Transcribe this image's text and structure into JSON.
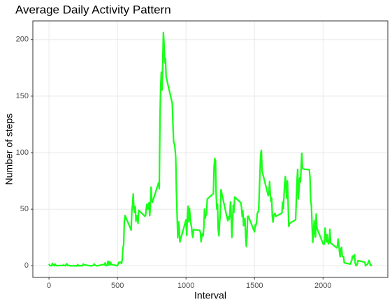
{
  "chart_data": {
    "type": "line",
    "title": "Average Daily Activity Pattern",
    "x_label": "Interval",
    "y_label": "Number of steps",
    "color": "#1aff1a",
    "x": [
      0,
      5,
      10,
      15,
      20,
      25,
      30,
      35,
      40,
      45,
      50,
      55,
      100,
      105,
      110,
      115,
      120,
      125,
      130,
      135,
      140,
      145,
      150,
      155,
      200,
      205,
      210,
      215,
      220,
      225,
      230,
      235,
      240,
      245,
      250,
      255,
      300,
      305,
      310,
      315,
      320,
      325,
      330,
      335,
      340,
      345,
      350,
      355,
      400,
      405,
      410,
      415,
      420,
      425,
      430,
      435,
      440,
      445,
      450,
      455,
      500,
      505,
      510,
      515,
      520,
      525,
      530,
      535,
      540,
      545,
      550,
      555,
      600,
      605,
      610,
      615,
      620,
      625,
      630,
      635,
      640,
      645,
      650,
      655,
      700,
      705,
      710,
      715,
      720,
      725,
      730,
      735,
      740,
      745,
      750,
      755,
      800,
      805,
      810,
      815,
      820,
      825,
      830,
      835,
      840,
      845,
      850,
      855,
      900,
      905,
      910,
      915,
      920,
      925,
      930,
      935,
      940,
      945,
      950,
      955,
      1000,
      1005,
      1010,
      1015,
      1020,
      1025,
      1030,
      1035,
      1040,
      1045,
      1050,
      1055,
      1100,
      1105,
      1110,
      1115,
      1120,
      1125,
      1130,
      1135,
      1140,
      1145,
      1150,
      1155,
      1200,
      1205,
      1210,
      1215,
      1220,
      1225,
      1230,
      1235,
      1240,
      1245,
      1250,
      1255,
      1300,
      1305,
      1310,
      1315,
      1320,
      1325,
      1330,
      1335,
      1340,
      1345,
      1350,
      1355,
      1400,
      1405,
      1410,
      1415,
      1420,
      1425,
      1430,
      1435,
      1440,
      1445,
      1450,
      1455,
      1500,
      1505,
      1510,
      1515,
      1520,
      1525,
      1530,
      1535,
      1540,
      1545,
      1550,
      1555,
      1600,
      1605,
      1610,
      1615,
      1620,
      1625,
      1630,
      1635,
      1640,
      1645,
      1650,
      1655,
      1700,
      1705,
      1710,
      1715,
      1720,
      1725,
      1730,
      1735,
      1740,
      1745,
      1750,
      1755,
      1800,
      1805,
      1810,
      1815,
      1820,
      1825,
      1830,
      1835,
      1840,
      1845,
      1850,
      1855,
      1900,
      1905,
      1910,
      1915,
      1920,
      1925,
      1930,
      1935,
      1940,
      1945,
      1950,
      1955,
      2000,
      2005,
      2010,
      2015,
      2020,
      2025,
      2030,
      2035,
      2040,
      2045,
      2050,
      2055,
      2100,
      2105,
      2110,
      2115,
      2120,
      2125,
      2130,
      2135,
      2140,
      2145,
      2150,
      2155,
      2200,
      2205,
      2210,
      2215,
      2220,
      2225,
      2230,
      2235,
      2240,
      2245,
      2250,
      2255,
      2300,
      2305,
      2310,
      2315,
      2320,
      2325,
      2330,
      2335,
      2340,
      2345,
      2350,
      2355
    ],
    "values": [
      1.7,
      0.3,
      0.1,
      0.15,
      0.08,
      2.1,
      0.5,
      0.9,
      0,
      1.5,
      0.3,
      0.1,
      0.3,
      0.7,
      0.2,
      0.3,
      0,
      1.1,
      1.8,
      0.2,
      0.2,
      0.4,
      0.26,
      0,
      0,
      0,
      1.1,
      0,
      0,
      0.13,
      0,
      0.2,
      0,
      0,
      1.5,
      0.9,
      0,
      0,
      0,
      0,
      0.2,
      0.6,
      1.6,
      0.6,
      0.5,
      0.08,
      0,
      0,
      1.2,
      0.9,
      2.6,
      0,
      0.3,
      0.36,
      4.1,
      0.7,
      3.5,
      0.8,
      3.1,
      1.1,
      0,
      1.6,
      3,
      2.2,
      3.3,
      2.96,
      2.1,
      6.1,
      16,
      18.3,
      39.5,
      44.5,
      31.5,
      49.3,
      53.8,
      63.5,
      50,
      47.1,
      52.2,
      39.3,
      44,
      44.2,
      37.4,
      49,
      43.8,
      44.4,
      50.5,
      54.5,
      49.9,
      51,
      55.7,
      44.3,
      52.3,
      69.5,
      57.8,
      56.2,
      73.4,
      68.2,
      129.4,
      157.5,
      171.2,
      155.4,
      177.3,
      206.2,
      195.9,
      179.6,
      183.4,
      167,
      143.5,
      124,
      109.1,
      108.1,
      103.7,
      95.96,
      66.2,
      45.2,
      24.8,
      38.8,
      34.98,
      21.1,
      40.6,
      27,
      42,
      52.7,
      38.9,
      50.8,
      44.3,
      37.4,
      34.7,
      28.3,
      25.1,
      31.9,
      31.4,
      29.7,
      21.3,
      25.5,
      28.4,
      26.5,
      33.4,
      50,
      42,
      44.6,
      46,
      59,
      63.9,
      87.7,
      94.8,
      92.8,
      63.4,
      50.2,
      54.5,
      32.4,
      26.5,
      37.7,
      45,
      67.3,
      42.3,
      39.9,
      43.3,
      40.98,
      46.2,
      56.4,
      42.8,
      25.1,
      39.96,
      53.5,
      47.3,
      60.8,
      55.8,
      51.96,
      43.6,
      48.7,
      35.5,
      37.5,
      41.8,
      27.5,
      17.1,
      26.1,
      43.6,
      43.8,
      30,
      36.1,
      35.5,
      38.8,
      45.96,
      47.75,
      48.1,
      65.3,
      82.9,
      98.7,
      102.1,
      83.96,
      62.1,
      64.1,
      74.5,
      63.2,
      56.9,
      59.8,
      43.9,
      38.6,
      44.7,
      45.5,
      46.2,
      43.7,
      46.6,
      56.3,
      50.7,
      61.2,
      72.7,
      78.9,
      68.9,
      59.7,
      75.1,
      56.5,
      34.8,
      37.5,
      40.7,
      58,
      74.7,
      85.3,
      59.3,
      67.8,
      77.7,
      74.2,
      85.3,
      99.5,
      86.6,
      85.6,
      84.9,
      77.8,
      58,
      53.4,
      36.3,
      20.7,
      27.4,
      40,
      30.2,
      25.5,
      45.7,
      33.5,
      19.6,
      19,
      19.3,
      33.3,
      26.8,
      21.2,
      27.3,
      21.3,
      19.5,
      21.3,
      32.3,
      20.2,
      15.9,
      17.2,
      23.5,
      19.2,
      12.5,
      8,
      14.7,
      16.3,
      8.7,
      7.8,
      8.1,
      2.6,
      1.5,
      3.7,
      4.8,
      8.5,
      7.1,
      8.7,
      9.8,
      2.2,
      0.3,
      0.1,
      1.6,
      4.6,
      3.3,
      2.8,
      0,
      0.8,
      0.96,
      1.6,
      2.6,
      4.7,
      3.3,
      0.6,
      0.2,
      1.1
    ],
    "xlim": [
      -117.75,
      2472.75
    ],
    "xticks": [
      0,
      500,
      1000,
      1500,
      2000
    ],
    "ylim": [
      -10.3,
      216.5
    ],
    "yticks": [
      0,
      50,
      100,
      150,
      200
    ],
    "grid": true
  }
}
